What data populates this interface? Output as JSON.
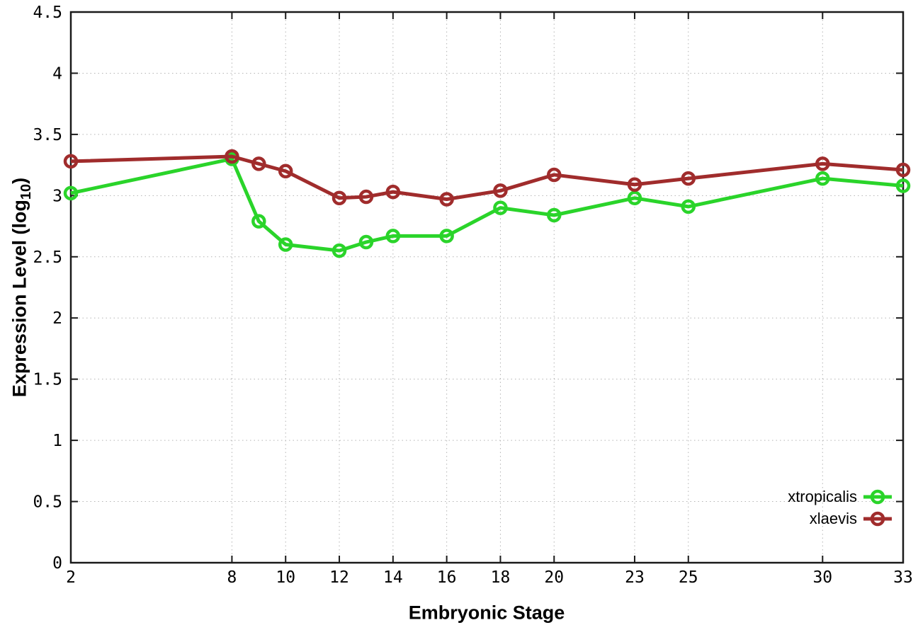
{
  "chart_data": {
    "type": "line",
    "title": "",
    "xlabel": "Embryonic Stage",
    "ylabel": "Expression Level (log10)",
    "ylabel_parts": {
      "pre": "Expression Level (log",
      "sub": "10",
      "post": ")"
    },
    "xlim": [
      2,
      33
    ],
    "ylim": [
      0,
      4.5
    ],
    "grid": true,
    "legend_position": "bottom-right",
    "x": [
      2,
      8,
      9,
      10,
      12,
      13,
      14,
      16,
      18,
      20,
      23,
      25,
      30,
      33
    ],
    "x_ticks": [
      {
        "value": 2,
        "label": "2"
      },
      {
        "value": 8,
        "label": "8"
      },
      {
        "value": 10,
        "label": "10"
      },
      {
        "value": 12,
        "label": "12"
      },
      {
        "value": 14,
        "label": "14"
      },
      {
        "value": 16,
        "label": "16"
      },
      {
        "value": 18,
        "label": "18"
      },
      {
        "value": 20,
        "label": "20"
      },
      {
        "value": 23,
        "label": "23"
      },
      {
        "value": 25,
        "label": "25"
      },
      {
        "value": 30,
        "label": "30"
      },
      {
        "value": 33,
        "label": "33"
      }
    ],
    "y_ticks": [
      {
        "value": 0,
        "label": "0"
      },
      {
        "value": 0.5,
        "label": "0.5"
      },
      {
        "value": 1,
        "label": "1"
      },
      {
        "value": 1.5,
        "label": "1.5"
      },
      {
        "value": 2,
        "label": "2"
      },
      {
        "value": 2.5,
        "label": "2.5"
      },
      {
        "value": 3,
        "label": "3"
      },
      {
        "value": 3.5,
        "label": "3.5"
      },
      {
        "value": 4,
        "label": "4"
      },
      {
        "value": 4.5,
        "label": "4.5"
      }
    ],
    "series": [
      {
        "name": "xtropicalis",
        "color": "#2ad42a",
        "values": [
          3.02,
          3.3,
          2.79,
          2.6,
          2.55,
          2.62,
          2.67,
          2.67,
          2.9,
          2.84,
          2.98,
          2.91,
          3.14,
          3.08
        ]
      },
      {
        "name": "xlaevis",
        "color": "#a02c2c",
        "values": [
          3.28,
          3.32,
          3.26,
          3.2,
          2.98,
          2.99,
          3.03,
          2.97,
          3.04,
          3.17,
          3.09,
          3.14,
          3.26,
          3.21
        ]
      }
    ],
    "colors": {
      "axis": "#1a1a1a",
      "grid": "#b4b4b4",
      "background": "#ffffff",
      "text": "#000000"
    }
  }
}
